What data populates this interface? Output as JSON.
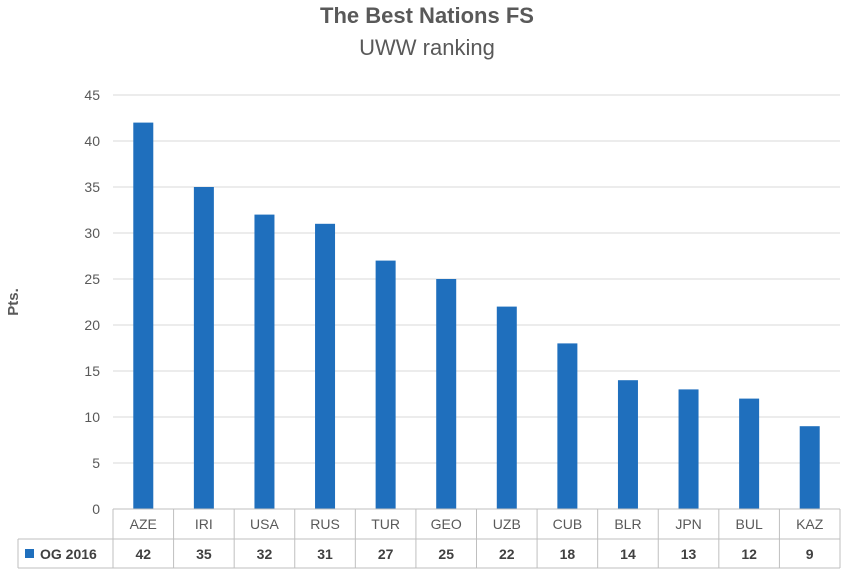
{
  "chart_data": {
    "type": "bar",
    "title": "The Best Nations FS",
    "subtitle": "UWW ranking",
    "xlabel": "",
    "ylabel": "Pts.",
    "ylim": [
      0,
      45
    ],
    "yticks": [
      0,
      5,
      10,
      15,
      20,
      25,
      30,
      35,
      40,
      45
    ],
    "grid": true,
    "legend_placement": "data-table-left",
    "categories": [
      "AZE",
      "IRI",
      "USA",
      "RUS",
      "TUR",
      "GEO",
      "UZB",
      "CUB",
      "BLR",
      "JPN",
      "BUL",
      "KAZ"
    ],
    "series": [
      {
        "name": "OG 2016",
        "color": "#1f6fbd",
        "values": [
          42,
          35,
          32,
          31,
          27,
          25,
          22,
          18,
          14,
          13,
          12,
          9
        ]
      }
    ]
  }
}
